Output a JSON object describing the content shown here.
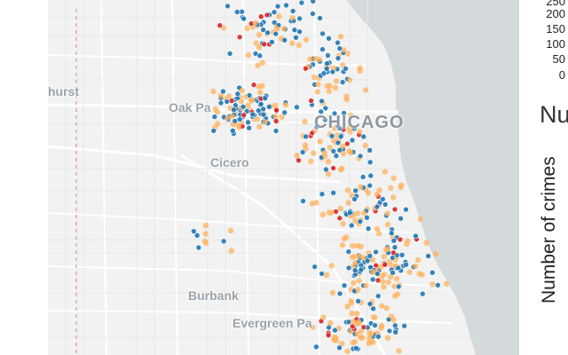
{
  "map": {
    "places": [
      {
        "name": "Elmhurst",
        "label": "hurst"
      },
      {
        "name": "Oak Park",
        "label": "Oak Pa"
      },
      {
        "name": "Chicago",
        "label": "CHICAGO"
      },
      {
        "name": "Cicero",
        "label": "Cicero"
      },
      {
        "name": "Burbank",
        "label": "Burbank"
      },
      {
        "name": "Evergreen Park",
        "label": "Evergreen Pa"
      }
    ],
    "marker_colors": {
      "blue": "#1f77b4",
      "orange": "#ffb25e",
      "red": "#d62728"
    },
    "colors": {
      "land": "#f1f2f1",
      "water": "#d4dadc",
      "road": "#ffffff",
      "boundary": "#e3a8a8"
    }
  },
  "side_panel": {
    "y_ticks": [
      "250",
      "200",
      "150",
      "100",
      "50",
      "0"
    ],
    "title": "Nu",
    "y_axis_label": "Number of crimes"
  }
}
